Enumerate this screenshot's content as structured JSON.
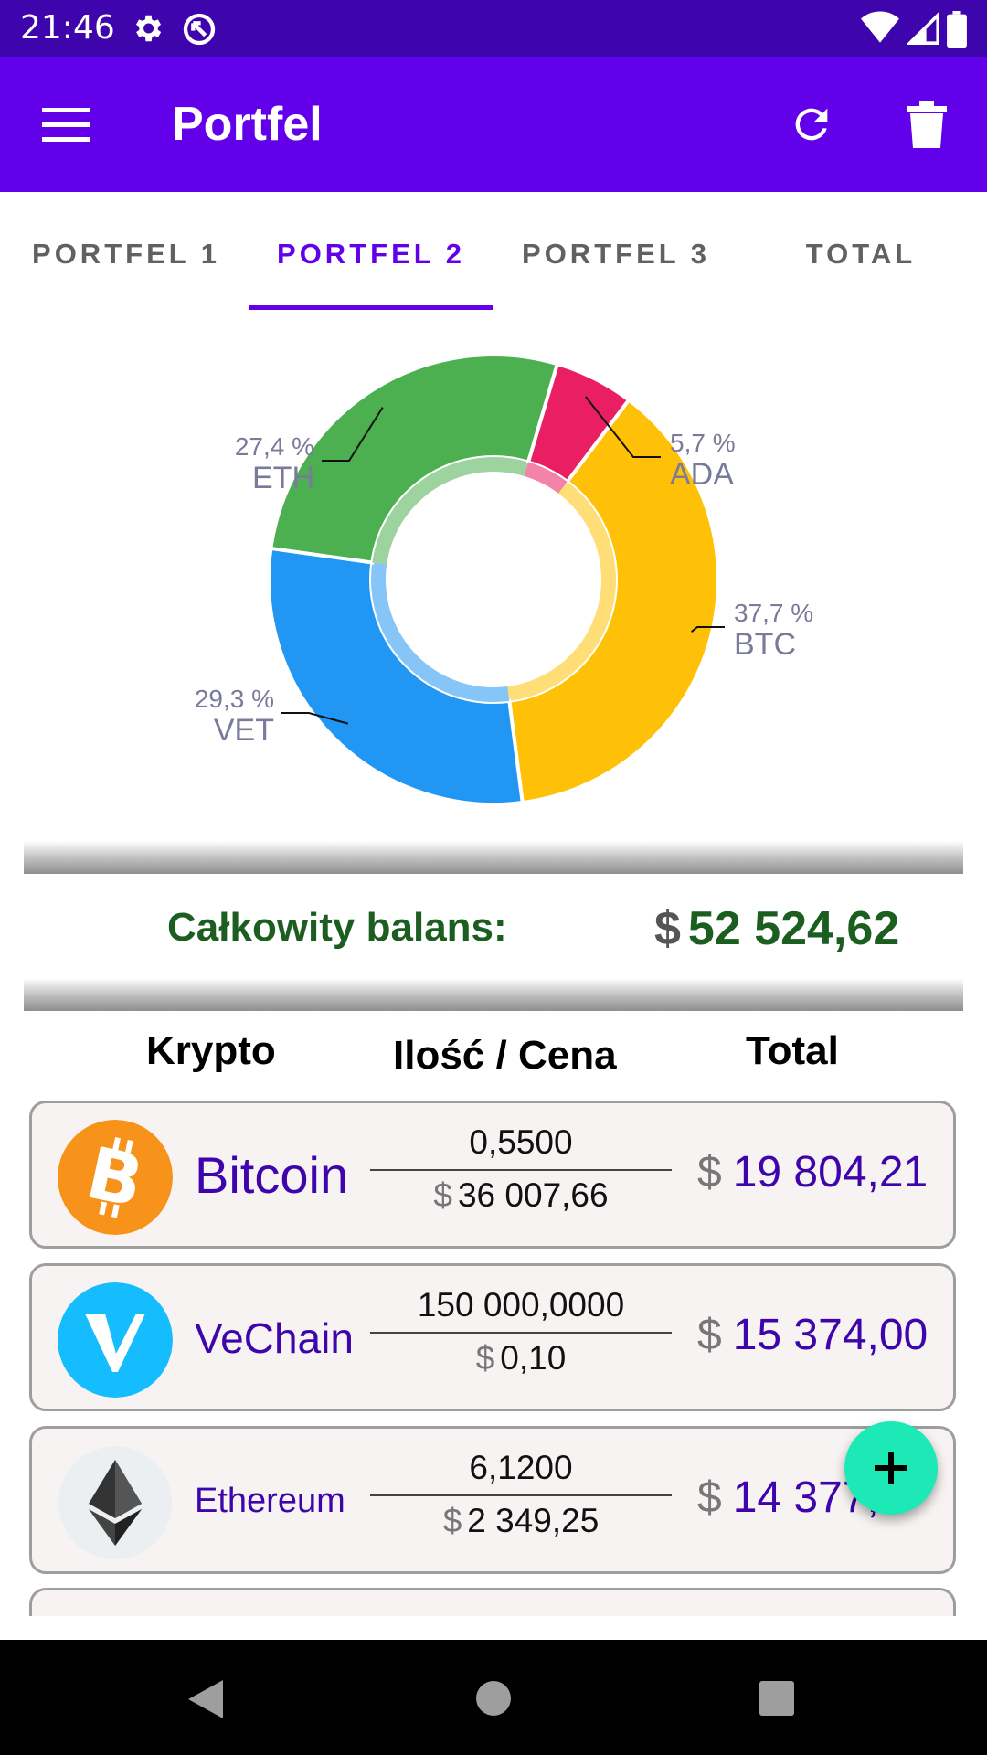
{
  "status_bar": {
    "time": "21:46"
  },
  "app_bar": {
    "title": "Portfel"
  },
  "tabs": [
    {
      "label": "PORTFEL 1"
    },
    {
      "label": "PORTFEL 2"
    },
    {
      "label": "PORTFEL 3"
    },
    {
      "label": "TOTAL"
    }
  ],
  "chart_data": {
    "type": "pie",
    "style": "donut",
    "slices": [
      {
        "label": "BTC",
        "value": 37.7,
        "percent_label": "37,7 %",
        "color": "#ffc107"
      },
      {
        "label": "VET",
        "value": 29.3,
        "percent_label": "29,3 %",
        "color": "#2196f3"
      },
      {
        "label": "ETH",
        "value": 27.4,
        "percent_label": "27,4 %",
        "color": "#4caf50"
      },
      {
        "label": "ADA",
        "value": 5.7,
        "percent_label": "5,7 %",
        "color": "#e91e63"
      }
    ]
  },
  "balance": {
    "label": "Całkowity balans:",
    "currency": "$",
    "value": "52 524,62"
  },
  "table_headers": {
    "crypto": "Krypto",
    "qty_price": "Ilość / Cena",
    "total": "Total"
  },
  "coins": [
    {
      "name": "Bitcoin",
      "quantity": "0,5500",
      "price": "36 007,66",
      "total": "19 804,21",
      "currency": "$"
    },
    {
      "name": "VeChain",
      "quantity": "150 000,0000",
      "price": "0,10",
      "total": "15 374,00",
      "currency": "$"
    },
    {
      "name": "Ethereum",
      "quantity": "6,1200",
      "price": "2 349,25",
      "total": "14 377,",
      "currency": "$"
    }
  ],
  "fab": {
    "icon": "plus-icon"
  },
  "colors": {
    "status_bar": "#3d05ab",
    "app_bar": "#6200ea",
    "accent": "#6200ea",
    "balance": "#1b5e20",
    "fab": "#1de9b6"
  }
}
